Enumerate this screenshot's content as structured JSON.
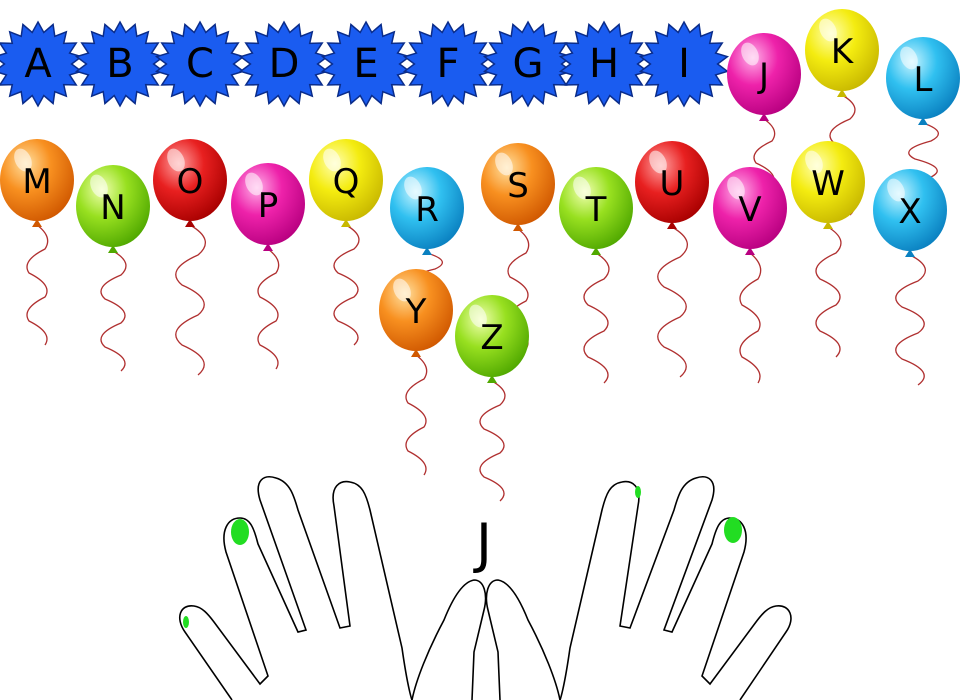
{
  "popped_letters": [
    "A",
    "B",
    "C",
    "D",
    "E",
    "F",
    "G",
    "H",
    "I"
  ],
  "colors": {
    "star_fill": "#1a5cf0",
    "star_stroke": "#0a2c8a",
    "string": "#b03030",
    "finger_highlight": "#22dd22",
    "hand_outline": "#000000"
  },
  "balloons": [
    {
      "letter": "J",
      "color": "pink"
    },
    {
      "letter": "K",
      "color": "yellow"
    },
    {
      "letter": "L",
      "color": "blue"
    },
    {
      "letter": "M",
      "color": "orange"
    },
    {
      "letter": "N",
      "color": "green"
    },
    {
      "letter": "O",
      "color": "red"
    },
    {
      "letter": "P",
      "color": "pink"
    },
    {
      "letter": "Q",
      "color": "yellow"
    },
    {
      "letter": "R",
      "color": "blue"
    },
    {
      "letter": "S",
      "color": "orange"
    },
    {
      "letter": "T",
      "color": "green"
    },
    {
      "letter": "U",
      "color": "red"
    },
    {
      "letter": "V",
      "color": "pink"
    },
    {
      "letter": "W",
      "color": "yellow"
    },
    {
      "letter": "X",
      "color": "blue"
    },
    {
      "letter": "Y",
      "color": "orange"
    },
    {
      "letter": "Z",
      "color": "green"
    }
  ],
  "balloon_palette": {
    "pink": [
      "#ffb0e8",
      "#ee22aa",
      "#b80080"
    ],
    "yellow": [
      "#ffffb0",
      "#f4ec10",
      "#c8b800"
    ],
    "blue": [
      "#c8f4ff",
      "#30c0f0",
      "#0a80c0"
    ],
    "orange": [
      "#ffe0a0",
      "#f89020",
      "#d05800"
    ],
    "green": [
      "#f0ffb0",
      "#98e020",
      "#50a800"
    ],
    "red": [
      "#ffa0a0",
      "#e82020",
      "#a80000"
    ]
  },
  "target_letter": "J",
  "highlighted_finger": "index"
}
